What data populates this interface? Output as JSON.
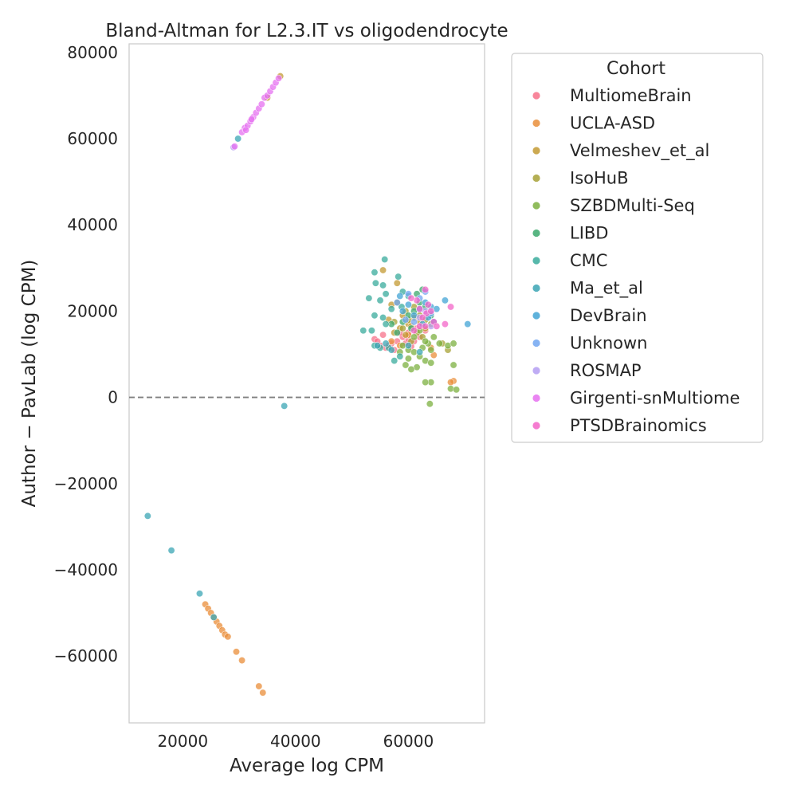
{
  "chart_data": {
    "type": "scatter",
    "title": "Bland-Altman for L2.3.IT vs oligodendrocyte",
    "xlabel": "Average log CPM",
    "ylabel": "Author − PavLab (log CPM)",
    "xlim": [
      10500,
      73500
    ],
    "ylim": [
      -75500,
      82000
    ],
    "xticks": [
      20000,
      40000,
      60000
    ],
    "xtick_labels": [
      "20000",
      "40000",
      "60000"
    ],
    "yticks": [
      80000,
      60000,
      40000,
      20000,
      0,
      -20000,
      -40000,
      -60000
    ],
    "ytick_labels": [
      "80000",
      "60000",
      "40000",
      "20000",
      "0",
      "−20000",
      "−40000",
      "−60000"
    ],
    "reference_line": {
      "y": 0,
      "style": "dashed",
      "color": "#7f7f7f"
    },
    "grid": false,
    "legend": {
      "title": "Cohort",
      "placement": "outside-right"
    },
    "series": [
      {
        "name": "MultiomeBrain",
        "color": "#f77189",
        "points": [
          [
            54000,
            13500
          ],
          [
            55000,
            12000
          ],
          [
            56000,
            11500
          ],
          [
            55500,
            14500
          ],
          [
            57000,
            12500
          ],
          [
            58000,
            13000
          ],
          [
            59000,
            14000
          ],
          [
            60000,
            15000
          ],
          [
            61000,
            13000
          ],
          [
            62000,
            14000
          ],
          [
            56500,
            12000
          ],
          [
            57500,
            11000
          ],
          [
            59500,
            12500
          ],
          [
            60500,
            11800
          ],
          [
            63000,
            15500
          ],
          [
            62500,
            16500
          ],
          [
            54500,
            13000
          ],
          [
            58500,
            15000
          ],
          [
            61500,
            16000
          ],
          [
            60000,
            13500
          ]
        ]
      },
      {
        "name": "UCLA-ASD",
        "color": "#e98e3a",
        "points": [
          [
            24000,
            -48000
          ],
          [
            24500,
            -49000
          ],
          [
            25000,
            -50000
          ],
          [
            25500,
            -51000
          ],
          [
            26000,
            -52000
          ],
          [
            26500,
            -53000
          ],
          [
            27000,
            -54000
          ],
          [
            27500,
            -55000
          ],
          [
            28000,
            -55500
          ],
          [
            29500,
            -59000
          ],
          [
            30500,
            -61000
          ],
          [
            33500,
            -67000
          ],
          [
            34200,
            -68500
          ],
          [
            68000,
            3800
          ],
          [
            67500,
            3500
          ],
          [
            64500,
            9800
          ],
          [
            64000,
            11500
          ],
          [
            57000,
            13000
          ],
          [
            58500,
            12000
          ],
          [
            60000,
            14500
          ]
        ]
      },
      {
        "name": "Velmeshev_et_al",
        "color": "#c39a33",
        "points": [
          [
            55500,
            29500
          ],
          [
            58000,
            26500
          ],
          [
            57000,
            21500
          ],
          [
            59000,
            19000
          ],
          [
            56500,
            18000
          ],
          [
            60000,
            17000
          ],
          [
            61000,
            18500
          ],
          [
            58500,
            16000
          ],
          [
            57500,
            15000
          ],
          [
            62000,
            17500
          ],
          [
            59500,
            14500
          ],
          [
            60500,
            16500
          ],
          [
            37300,
            74500
          ],
          [
            35000,
            69500
          ],
          [
            63000,
            16000
          ]
        ]
      },
      {
        "name": "IsoHuB",
        "color": "#a7a136",
        "points": [
          [
            58000,
            22000
          ],
          [
            59500,
            20000
          ],
          [
            61000,
            21000
          ],
          [
            60000,
            18000
          ],
          [
            62000,
            19000
          ],
          [
            57500,
            17500
          ],
          [
            63000,
            18000
          ],
          [
            61500,
            15000
          ],
          [
            59000,
            16000
          ],
          [
            60500,
            13000
          ],
          [
            64000,
            17000
          ],
          [
            66000,
            12500
          ],
          [
            67000,
            11000
          ],
          [
            62500,
            14000
          ]
        ]
      },
      {
        "name": "SZBDMulti-Seq",
        "color": "#7cb040",
        "points": [
          [
            59000,
            12000
          ],
          [
            60000,
            11000
          ],
          [
            61000,
            10500
          ],
          [
            62000,
            9500
          ],
          [
            63000,
            8500
          ],
          [
            64000,
            8000
          ],
          [
            61500,
            7000
          ],
          [
            60500,
            6500
          ],
          [
            59500,
            7500
          ],
          [
            62500,
            11500
          ],
          [
            63500,
            12500
          ],
          [
            64500,
            14000
          ],
          [
            65500,
            12500
          ],
          [
            67000,
            12000
          ],
          [
            68000,
            12500
          ],
          [
            68000,
            7500
          ],
          [
            67500,
            2000
          ],
          [
            68500,
            1800
          ],
          [
            64000,
            3500
          ],
          [
            63000,
            3500
          ],
          [
            63800,
            -1500
          ],
          [
            60000,
            9000
          ],
          [
            58500,
            10500
          ],
          [
            61000,
            14000
          ],
          [
            62000,
            15500
          ],
          [
            63000,
            13000
          ],
          [
            64000,
            11000
          ]
        ]
      },
      {
        "name": "LIBD",
        "color": "#3ba86c",
        "points": [
          [
            61000,
            20000
          ],
          [
            62000,
            22000
          ],
          [
            60000,
            19000
          ],
          [
            59000,
            17500
          ],
          [
            63000,
            21000
          ],
          [
            62500,
            25000
          ],
          [
            61500,
            24000
          ],
          [
            60500,
            16000
          ],
          [
            64000,
            19000
          ],
          [
            58000,
            15000
          ],
          [
            57000,
            17000
          ]
        ]
      },
      {
        "name": "CMC",
        "color": "#3aab9c",
        "points": [
          [
            54000,
            29000
          ],
          [
            54200,
            26500
          ],
          [
            55500,
            26000
          ],
          [
            56000,
            24000
          ],
          [
            53000,
            23000
          ],
          [
            55000,
            22500
          ],
          [
            54000,
            19000
          ],
          [
            55500,
            18500
          ],
          [
            56000,
            17000
          ],
          [
            52000,
            15500
          ],
          [
            53500,
            15500
          ],
          [
            54000,
            12000
          ],
          [
            55000,
            11500
          ],
          [
            56500,
            11500
          ],
          [
            57500,
            8500
          ],
          [
            58500,
            9500
          ],
          [
            59000,
            24500
          ],
          [
            60000,
            23500
          ],
          [
            55800,
            32000
          ],
          [
            58200,
            28000
          ],
          [
            57000,
            20500
          ],
          [
            58800,
            21000
          ]
        ]
      },
      {
        "name": "Ma_et_al",
        "color": "#3ba5b4",
        "points": [
          [
            13800,
            -27500
          ],
          [
            18000,
            -35500
          ],
          [
            23000,
            -45500
          ],
          [
            25500,
            -51000
          ],
          [
            29800,
            60000
          ],
          [
            38000,
            -2000
          ],
          [
            54500,
            12000
          ],
          [
            56000,
            12500
          ],
          [
            57000,
            11000
          ],
          [
            60000,
            12000
          ],
          [
            62000,
            10500
          ]
        ]
      },
      {
        "name": "DevBrain",
        "color": "#43a4d5",
        "points": [
          [
            61000,
            19000
          ],
          [
            62000,
            20500
          ],
          [
            63000,
            22000
          ],
          [
            64000,
            21000
          ],
          [
            65000,
            20500
          ],
          [
            63500,
            18500
          ],
          [
            64500,
            17500
          ],
          [
            60000,
            21500
          ],
          [
            58500,
            23500
          ],
          [
            59000,
            20000
          ],
          [
            62500,
            17000
          ],
          [
            70500,
            17000
          ],
          [
            66500,
            22500
          ]
        ]
      },
      {
        "name": "Unknown",
        "color": "#71a6f1",
        "points": [
          [
            60000,
            24000
          ],
          [
            62000,
            23000
          ],
          [
            63000,
            24500
          ],
          [
            64000,
            19500
          ],
          [
            61000,
            17500
          ],
          [
            59500,
            18000
          ],
          [
            58000,
            22000
          ]
        ]
      },
      {
        "name": "ROSMAP",
        "color": "#b49df2",
        "points": [
          [
            29000,
            58000
          ],
          [
            63000,
            20000
          ],
          [
            62000,
            18500
          ],
          [
            64000,
            16500
          ]
        ]
      },
      {
        "name": "Girgenti-snMultiome",
        "color": "#e670f0",
        "points": [
          [
            29200,
            58200
          ],
          [
            30500,
            61500
          ],
          [
            31000,
            62500
          ],
          [
            31500,
            63000
          ],
          [
            32000,
            64000
          ],
          [
            32500,
            65000
          ],
          [
            33000,
            66000
          ],
          [
            33500,
            67000
          ],
          [
            34000,
            68000
          ],
          [
            34500,
            69500
          ],
          [
            35000,
            70000
          ],
          [
            35500,
            71000
          ],
          [
            36000,
            72000
          ],
          [
            36500,
            73000
          ],
          [
            37000,
            74000
          ],
          [
            31200,
            62000
          ],
          [
            32200,
            64500
          ]
        ]
      },
      {
        "name": "PTSDBrainomics",
        "color": "#f365c8",
        "points": [
          [
            63000,
            25000
          ],
          [
            67500,
            21000
          ],
          [
            66500,
            17000
          ],
          [
            63500,
            21500
          ],
          [
            62000,
            16500
          ],
          [
            64500,
            17500
          ],
          [
            61500,
            22500
          ],
          [
            60500,
            23000
          ],
          [
            63000,
            16500
          ],
          [
            65000,
            16500
          ],
          [
            62000,
            20500
          ],
          [
            63200,
            19500
          ],
          [
            62500,
            18500
          ],
          [
            64000,
            20000
          ],
          [
            61000,
            15500
          ]
        ]
      }
    ]
  }
}
